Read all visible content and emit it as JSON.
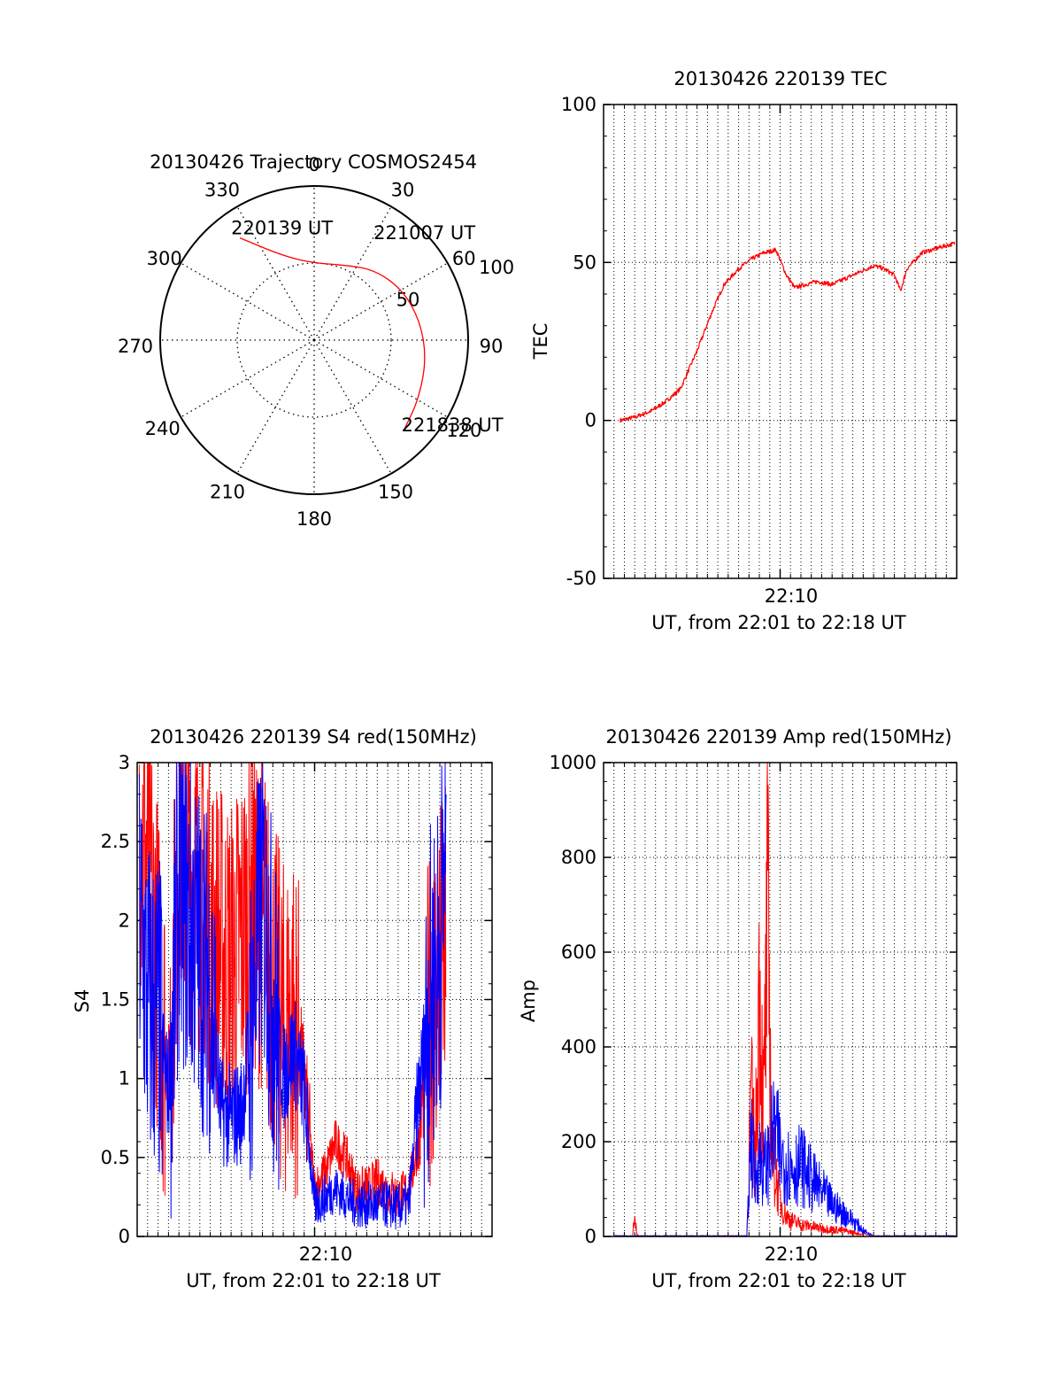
{
  "colors": {
    "series_red": "#ff0000",
    "series_blue": "#0000ff",
    "axis": "#000000",
    "grid": "#000000"
  },
  "chart_data": [
    {
      "id": "trajectory",
      "type": "polar",
      "title": "20130426 Trajectory COSMOS2454",
      "angle_labels": [
        "0",
        "30",
        "60",
        "90",
        "120",
        "150",
        "180",
        "210",
        "240",
        "270",
        "300",
        "330"
      ],
      "radial_labels": [
        "50",
        "100"
      ],
      "rlim": [
        0,
        100
      ],
      "grid": true,
      "track": {
        "points": [
          {
            "az": 324,
            "r": 82
          },
          {
            "az": 340,
            "r": 58
          },
          {
            "az": 0,
            "r": 50
          },
          {
            "az": 20,
            "r": 52
          },
          {
            "az": 40,
            "r": 60
          },
          {
            "az": 60,
            "r": 66
          },
          {
            "az": 80,
            "r": 70
          },
          {
            "az": 100,
            "r": 74
          },
          {
            "az": 120,
            "r": 78
          },
          {
            "az": 134,
            "r": 82
          }
        ],
        "annotations": [
          {
            "text": "220139 UT",
            "at_point": 0
          },
          {
            "text": "221007 UT",
            "at_point": 4
          },
          {
            "text": "221838 UT",
            "at_point": 9
          }
        ]
      }
    },
    {
      "id": "tec",
      "type": "line",
      "title": "20130426 220139 TEC",
      "ylabel": "TEC",
      "xlabel": "UT, from 22:01 to 22:18 UT",
      "x_tick_label": "22:10",
      "xlim_minutes": [
        1.5,
        18.5
      ],
      "ylim": [
        -50,
        100
      ],
      "yticks": [
        -50,
        0,
        50,
        100
      ],
      "grid": true,
      "series": [
        {
          "color": "red",
          "x": [
            2.3,
            3.0,
            3.8,
            4.5,
            5.2,
            6.0,
            6.7,
            7.3,
            8.0,
            8.6,
            9.2,
            9.8,
            10.3,
            10.7,
            11.2,
            11.8,
            12.5,
            13.5,
            14.5,
            15.0,
            15.5,
            15.8,
            16.1,
            16.4,
            16.8,
            17.3,
            17.8,
            18.4
          ],
          "y": [
            0,
            1,
            3,
            6,
            10,
            22,
            34,
            43,
            48,
            51,
            53,
            54,
            46,
            42,
            43,
            44,
            43,
            46,
            49,
            48,
            46,
            41,
            48,
            50,
            53,
            54,
            55,
            56
          ]
        }
      ]
    },
    {
      "id": "s4",
      "type": "line",
      "title": "20130426 220139 S4 red(150MHz)",
      "ylabel": "S4",
      "xlabel": "UT, from 22:01 to 22:18 UT",
      "x_tick_label": "22:10",
      "xlim_minutes": [
        1.5,
        18.5
      ],
      "ylim": [
        0,
        3
      ],
      "yticks": [
        "0",
        "0.5",
        "1",
        "1.5",
        "2",
        "2.5",
        "3"
      ],
      "grid": true,
      "series": [
        {
          "color": "red",
          "x": [
            1.6,
            2.0,
            2.5,
            3.0,
            3.5,
            4.0,
            4.5,
            5.0,
            5.5,
            6.0,
            6.5,
            7.0,
            7.5,
            8.0,
            8.5,
            9.0,
            9.5,
            10.0,
            10.5,
            11.0,
            11.5,
            12.0,
            12.5,
            13.0,
            13.5,
            14.0,
            14.5,
            15.0,
            15.5,
            16.0,
            16.3
          ],
          "y": [
            2.6,
            2.4,
            1.7,
            1.0,
            2.5,
            2.3,
            2.2,
            2.0,
            1.8,
            1.7,
            1.9,
            2.1,
            2.0,
            1.6,
            1.3,
            1.4,
            1.0,
            0.3,
            0.4,
            0.6,
            0.5,
            0.3,
            0.3,
            0.35,
            0.3,
            0.25,
            0.3,
            0.6,
            1.4,
            1.7,
            1.8
          ]
        },
        {
          "color": "blue",
          "x": [
            1.6,
            2.0,
            2.5,
            3.0,
            3.5,
            4.0,
            4.5,
            5.0,
            5.5,
            6.0,
            6.5,
            7.0,
            7.5,
            8.0,
            8.5,
            9.0,
            9.5,
            10.0,
            10.5,
            11.0,
            11.5,
            12.0,
            12.5,
            13.0,
            13.5,
            14.0,
            14.5,
            15.0,
            15.5,
            16.0,
            16.3
          ],
          "y": [
            2.0,
            1.5,
            1.4,
            0.9,
            2.2,
            2.0,
            1.8,
            1.6,
            0.8,
            0.75,
            0.8,
            1.4,
            2.2,
            1.5,
            1.0,
            1.2,
            0.9,
            0.2,
            0.25,
            0.3,
            0.25,
            0.2,
            0.2,
            0.2,
            0.2,
            0.18,
            0.2,
            0.9,
            1.5,
            1.8,
            2.5
          ]
        }
      ]
    },
    {
      "id": "amp",
      "type": "line",
      "title": "20130426 220139 Amp red(150MHz)",
      "ylabel": "Amp",
      "xlabel": "UT, from 22:01 to 22:18 UT",
      "x_tick_label": "22:10",
      "xlim_minutes": [
        1.5,
        18.5
      ],
      "ylim": [
        0,
        1000
      ],
      "yticks": [
        0,
        200,
        400,
        600,
        800,
        1000
      ],
      "grid": true,
      "series": [
        {
          "color": "red",
          "x": [
            2.0,
            2.9,
            3.0,
            3.1,
            3.2,
            8.0,
            8.4,
            8.6,
            8.8,
            9.0,
            9.2,
            9.4,
            9.6,
            9.8,
            10.0,
            10.2,
            10.5,
            11.0,
            11.5,
            12.0,
            13.0,
            14.0,
            14.5,
            18.5
          ],
          "y": [
            0,
            0,
            60,
            5,
            0,
            0,
            0,
            350,
            180,
            640,
            300,
            800,
            200,
            150,
            90,
            60,
            40,
            30,
            25,
            20,
            15,
            5,
            0,
            0
          ]
        },
        {
          "color": "blue",
          "x": [
            2.0,
            8.0,
            8.4,
            8.6,
            8.8,
            9.0,
            9.2,
            9.4,
            9.6,
            9.8,
            10.0,
            10.5,
            11.0,
            11.5,
            12.0,
            12.5,
            13.0,
            13.5,
            14.0,
            14.5,
            18.5
          ],
          "y": [
            0,
            0,
            0,
            250,
            140,
            200,
            170,
            180,
            240,
            260,
            200,
            170,
            180,
            140,
            110,
            80,
            60,
            40,
            15,
            0,
            0
          ]
        }
      ]
    }
  ]
}
